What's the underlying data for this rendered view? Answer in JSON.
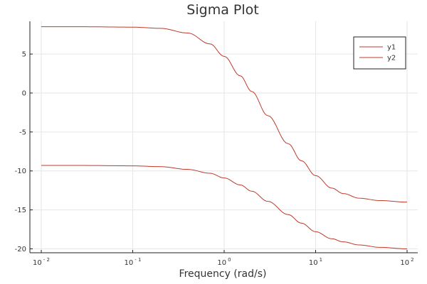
{
  "chart_data": {
    "type": "line",
    "title": "Sigma Plot",
    "xlabel": "Frequency (rad/s)",
    "ylabel": "",
    "xscale": "log",
    "xlim": [
      0.01,
      100
    ],
    "ylim": [
      -20.5,
      9.2
    ],
    "x_ticks": [
      {
        "base": "10",
        "exp": "- 2",
        "value": 0.01
      },
      {
        "base": "10",
        "exp": "- 1",
        "value": 0.1
      },
      {
        "base": "10",
        "exp": "0",
        "value": 1
      },
      {
        "base": "10",
        "exp": "1",
        "value": 10
      },
      {
        "base": "10",
        "exp": "2",
        "value": 100
      }
    ],
    "y_ticks": [
      {
        "label": "5",
        "value": 5
      },
      {
        "label": "0",
        "value": 0
      },
      {
        "label": "-5",
        "value": -5
      },
      {
        "label": "-10",
        "value": -10
      },
      {
        "label": "-15",
        "value": -15
      },
      {
        "label": "-20",
        "value": -20
      }
    ],
    "grid": true,
    "legend": "top-right",
    "x": [
      0.01,
      0.03,
      0.1,
      0.2,
      0.4,
      0.7,
      1,
      1.5,
      2,
      3,
      5,
      7,
      10,
      15,
      20,
      30,
      50,
      100
    ],
    "series": [
      {
        "name": "y1",
        "color": "#c0392b",
        "values": [
          8.5,
          8.5,
          8.45,
          8.3,
          7.7,
          6.3,
          4.7,
          2.2,
          0.2,
          -2.9,
          -6.5,
          -8.7,
          -10.6,
          -12.2,
          -12.9,
          -13.5,
          -13.8,
          -14.0
        ]
      },
      {
        "name": "y2",
        "color": "#c0392b",
        "values": [
          -9.3,
          -9.3,
          -9.35,
          -9.45,
          -9.8,
          -10.3,
          -10.9,
          -11.8,
          -12.6,
          -13.9,
          -15.6,
          -16.7,
          -17.8,
          -18.7,
          -19.1,
          -19.5,
          -19.8,
          -20.0
        ]
      }
    ]
  }
}
